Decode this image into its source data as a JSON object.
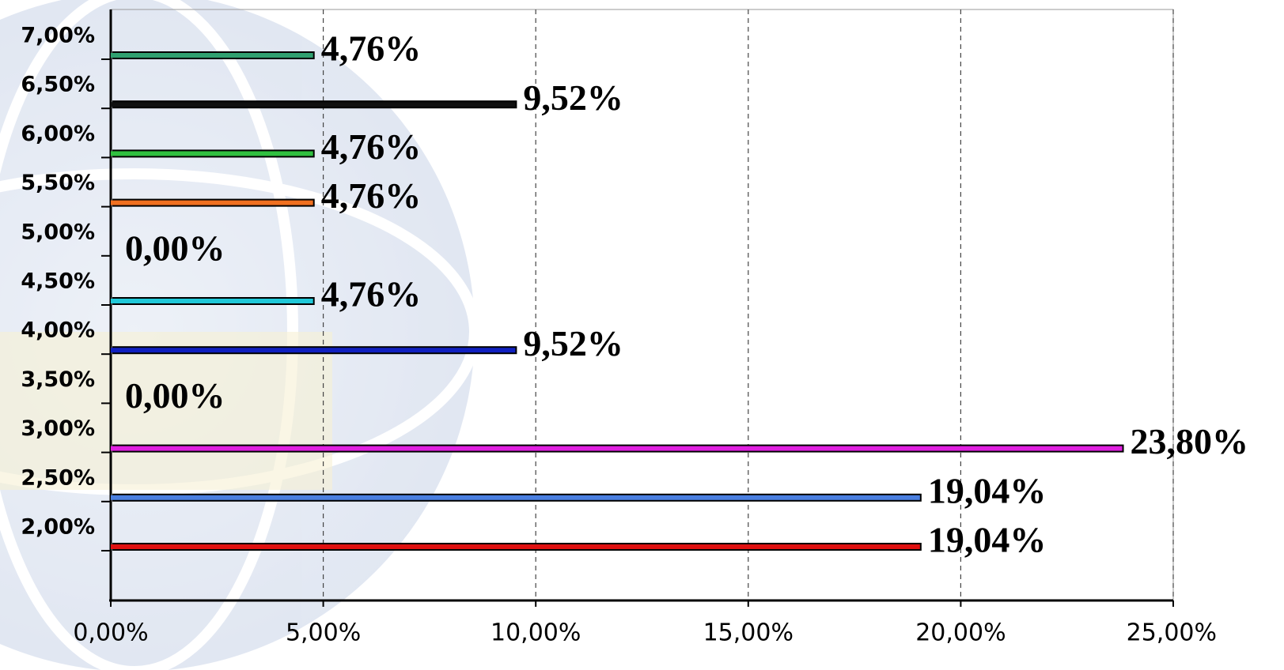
{
  "chart_data": {
    "type": "bar",
    "orientation": "horizontal",
    "categories": [
      "2,00%",
      "2,50%",
      "3,00%",
      "3,50%",
      "4,00%",
      "4,50%",
      "5,00%",
      "5,50%",
      "6,00%",
      "6,50%",
      "7,00%"
    ],
    "values": [
      19.04,
      19.04,
      23.8,
      0,
      9.52,
      4.76,
      0,
      4.76,
      4.76,
      9.52,
      4.76
    ],
    "value_labels": [
      "19,04%",
      "19,04%",
      "23,80%",
      "0,00%",
      "9,52%",
      "4,76%",
      "0,00%",
      "4,76%",
      "4,76%",
      "9,52%",
      "4,76%"
    ],
    "colors": [
      "#e01010",
      "#4a7fe0",
      "#e020e0",
      null,
      "#1020c0",
      "#20c8d8",
      null,
      "#f07020",
      "#30c040",
      "#101010",
      "#30a070"
    ],
    "xlim": [
      0,
      25
    ],
    "xticks": [
      {
        "value": 0,
        "label": "0,00%"
      },
      {
        "value": 5,
        "label": "5,00%"
      },
      {
        "value": 10,
        "label": "10,00%"
      },
      {
        "value": 15,
        "label": "15,00%"
      },
      {
        "value": 20,
        "label": "20,00%"
      },
      {
        "value": 25,
        "label": "25,00%"
      }
    ],
    "grid": true
  }
}
